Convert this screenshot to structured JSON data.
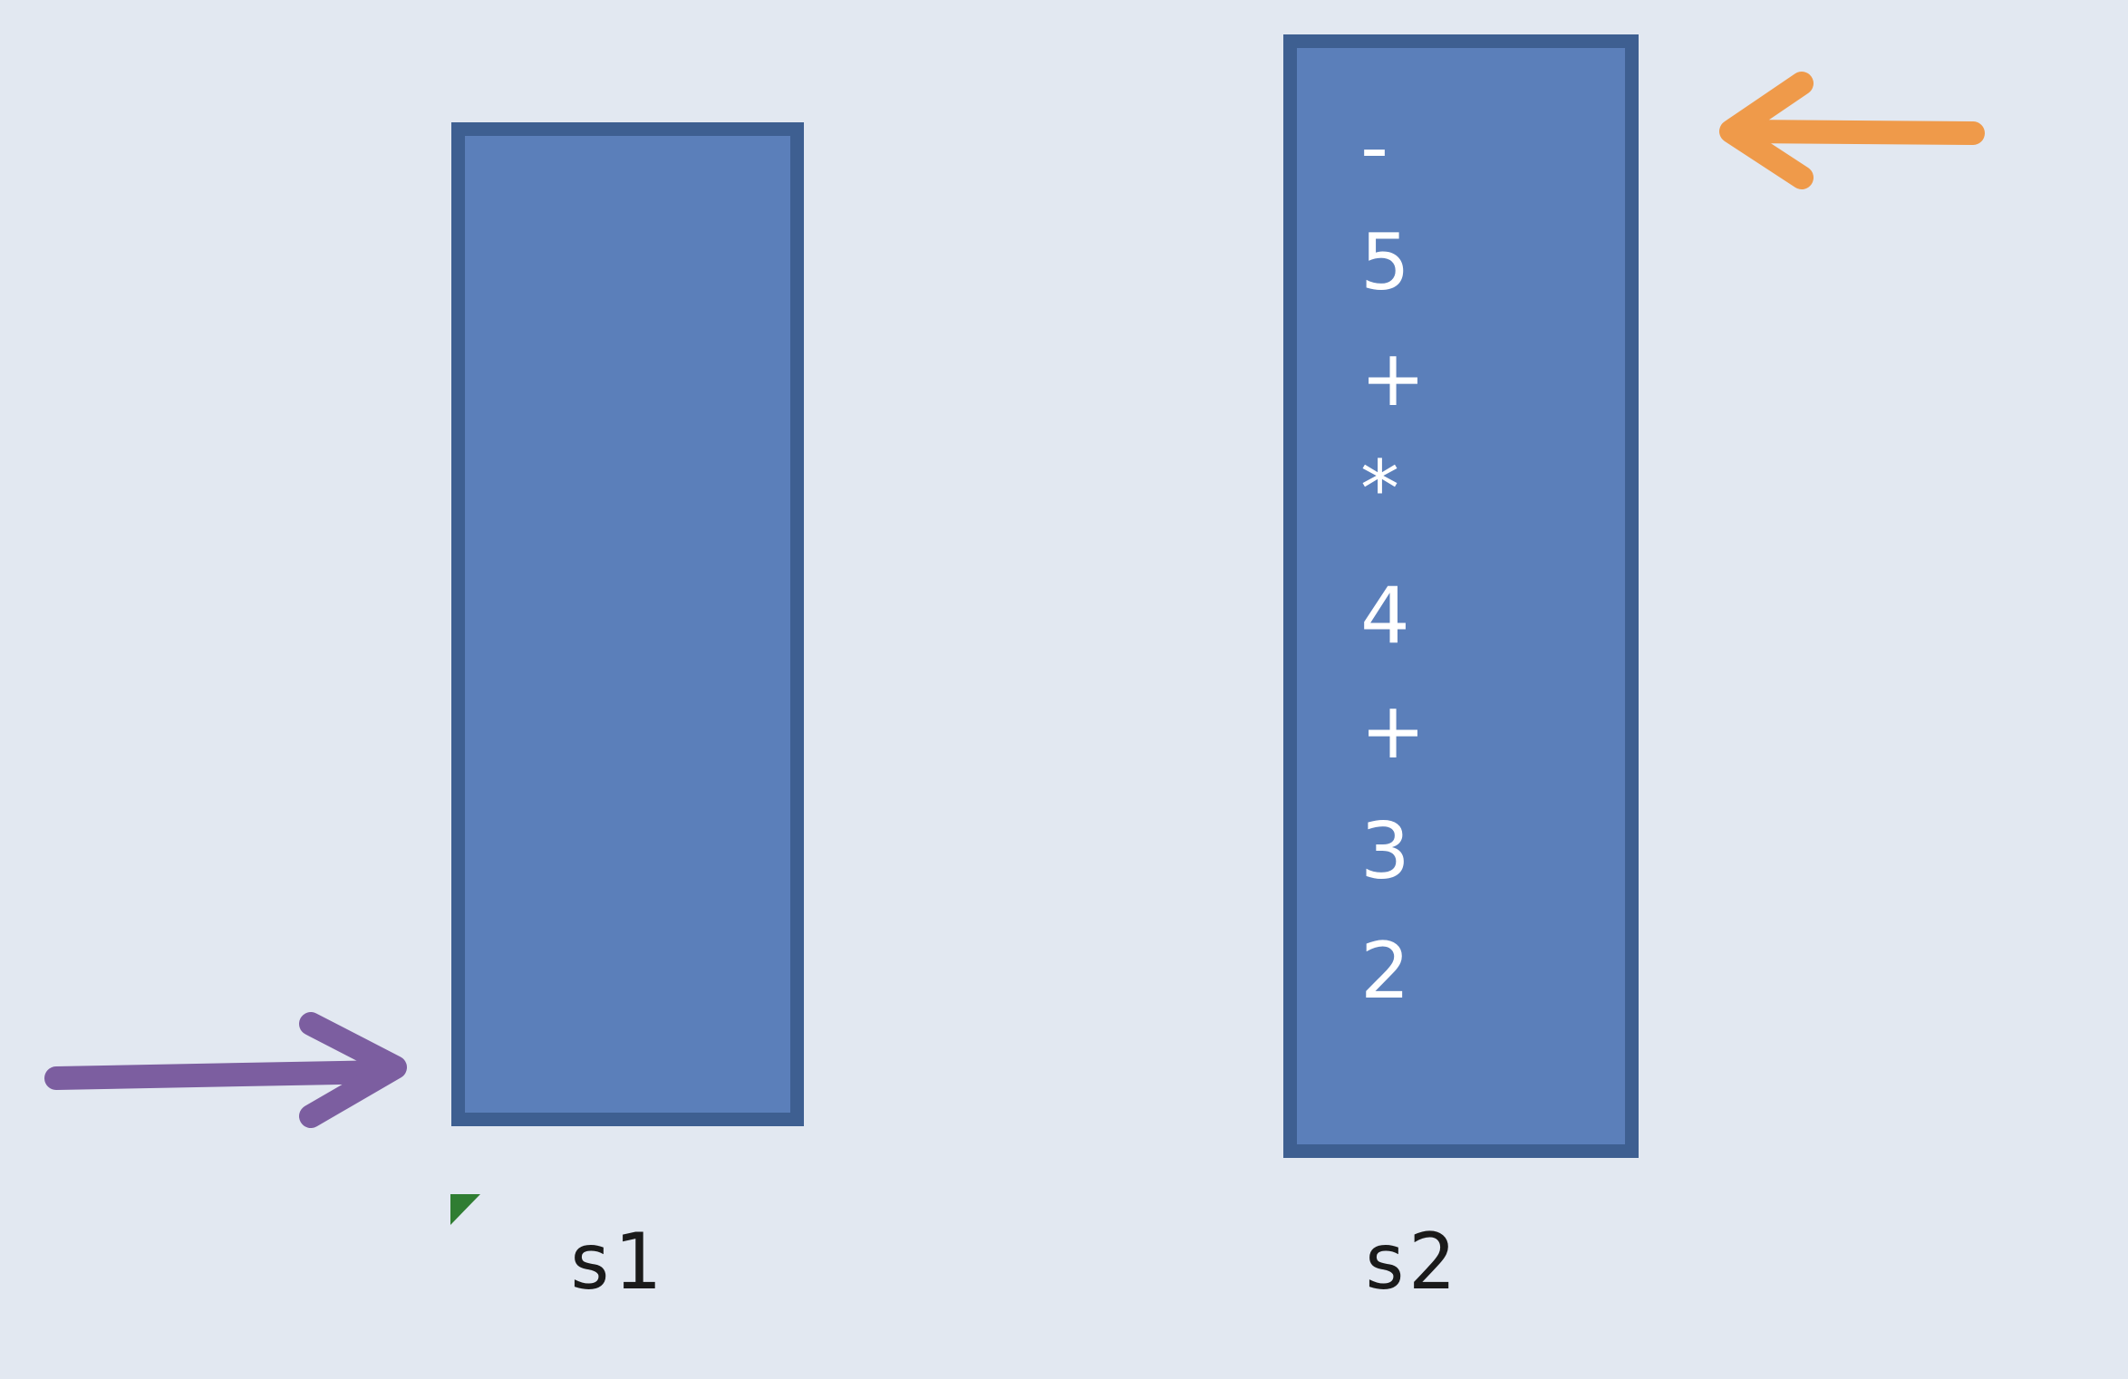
{
  "stacks": [
    {
      "name": "s1",
      "items": []
    },
    {
      "name": "s2",
      "items": [
        "-",
        "5",
        "+",
        "*",
        "4",
        "+",
        "3",
        "2"
      ]
    }
  ],
  "colors": {
    "background": "#e2e8f1",
    "stack_fill": "#5b7fba",
    "stack_border": "#3e5f91",
    "arrow_purple": "#7c5ea0",
    "arrow_orange": "#ef9a4a",
    "marker_green": "#2f7d32"
  }
}
